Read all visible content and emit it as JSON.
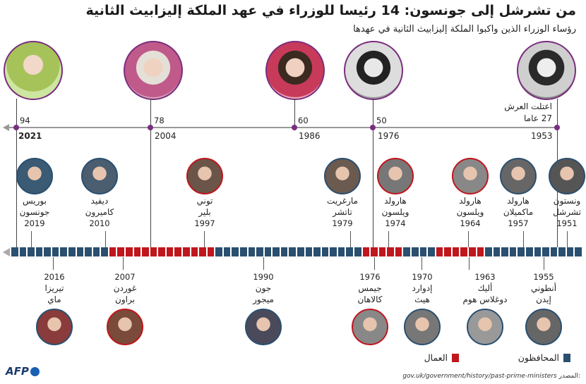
{
  "title": "من تشرشل إلى جونسون: 14 رئيسا للوزراء في عهد الملكة إليزابيث الثانية",
  "subtitle": "رؤساء الوزراء الذين واكبوا الملكة إليزابيث الثانية في عهدها",
  "queen_points": [
    {
      "age": "94",
      "year": "2021"
    },
    {
      "age": "78",
      "year": "2004"
    },
    {
      "age": "60",
      "year": "1986"
    },
    {
      "age": "50",
      "year": "1976"
    },
    {
      "age": "",
      "year": "1953"
    }
  ],
  "accession": {
    "line1": "اعتلت العرش",
    "line2": "27 عاما"
  },
  "pms_top": [
    {
      "name1": "بوريس",
      "name2": "جونسون",
      "year": "2019",
      "party": "con",
      "color": "#3b5a74"
    },
    {
      "name1": "ديفيد",
      "name2": "كاميرون",
      "year": "2010",
      "party": "con",
      "color": "#4a5e70"
    },
    {
      "name1": "توني",
      "name2": "بلير",
      "year": "1997",
      "party": "lab",
      "color": "#6a5548"
    },
    {
      "name1": "مارغريت",
      "name2": "تاتشر",
      "year": "1979",
      "party": "con",
      "color": "#6b5a4f"
    },
    {
      "name1": "هارولد",
      "name2": "ويلسون",
      "year": "1974",
      "party": "lab",
      "color": "#777"
    },
    {
      "name1": "هارولد",
      "name2": "ويلسون",
      "year": "1964",
      "party": "lab",
      "color": "#888"
    },
    {
      "name1": "هارولد",
      "name2": "ماكميلان",
      "year": "1957",
      "party": "con",
      "color": "#666"
    },
    {
      "name1": "ونستون",
      "name2": "تشرشل",
      "year": "1951",
      "party": "con",
      "color": "#555"
    }
  ],
  "pms_bottom": [
    {
      "year": "2016",
      "name1": "تيريزا",
      "name2": "ماي",
      "party": "con",
      "color": "#8a3b3b"
    },
    {
      "year": "2007",
      "name1": "غوردن",
      "name2": "براون",
      "party": "lab",
      "color": "#7a4a3a"
    },
    {
      "year": "1990",
      "name1": "جون",
      "name2": "ميجور",
      "party": "con",
      "color": "#4a4a5a"
    },
    {
      "year": "1976",
      "name1": "جيمس",
      "name2": "كالاهان",
      "party": "lab",
      "color": "#888"
    },
    {
      "year": "1970",
      "name1": "إدوارد",
      "name2": "هيث",
      "party": "con",
      "color": "#777"
    },
    {
      "year": "1963",
      "name1": "أليك",
      "name2": "دوغلاس هوم",
      "party": "con",
      "color": "#999"
    },
    {
      "year": "1955",
      "name1": "أنطوني",
      "name2": "إيدن",
      "party": "con",
      "color": "#666"
    }
  ],
  "legend": {
    "labour": "العمال",
    "conservative": "المحافظون"
  },
  "colors": {
    "labour": "#c0161d",
    "conservative": "#2a4f6f",
    "queen_ring": "#7a2e7e",
    "axis": "#999999"
  },
  "source_label": "المصدر:",
  "source_url": "gov.uk/government/history/past-prime-ministers",
  "logo": "AFP"
}
